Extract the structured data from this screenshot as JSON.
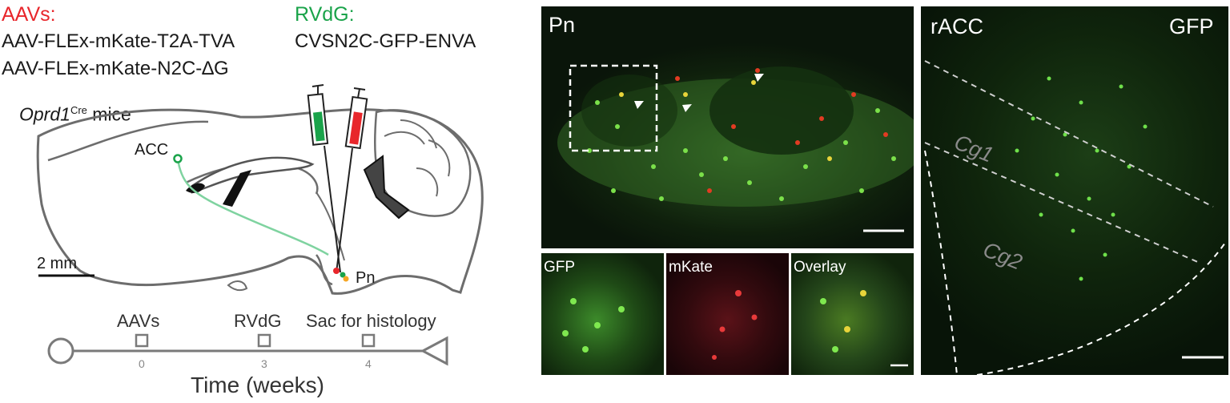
{
  "aavs": {
    "title": "AAVs:",
    "line1": "AAV-FLEx-mKate-T2A-TVA",
    "line2": "AAV-FLEx-mKate-N2C-∆G"
  },
  "rvdg": {
    "title": "RVdG:",
    "line1": "CVSN2C-GFP-ENVA"
  },
  "brain": {
    "mouse_gene": "Oprd1",
    "mouse_sup": "Cre",
    "mouse_suffix": " mice",
    "acc_label": "ACC",
    "pn_label": "Pn",
    "scale_label": "2 mm"
  },
  "timeline": {
    "events": [
      {
        "label": "AAVs",
        "week": "0"
      },
      {
        "label": "RVdG",
        "week": "3"
      },
      {
        "label": "Sac for histology",
        "week": "4"
      }
    ],
    "axis_label": "Time (weeks)"
  },
  "panels": {
    "pn_label": "Pn",
    "gfp_label": "GFP",
    "mkate_label": "mKate",
    "overlay_label": "Overlay",
    "racc_label": "rACC",
    "racc_channel": "GFP",
    "cg1_label": "Cg1",
    "cg2_label": "Cg2"
  },
  "colors": {
    "aav_red": "#e8262b",
    "rv_green": "#1aa34a",
    "outline": "#6d6d6d",
    "tract": "#7fd3a0"
  }
}
